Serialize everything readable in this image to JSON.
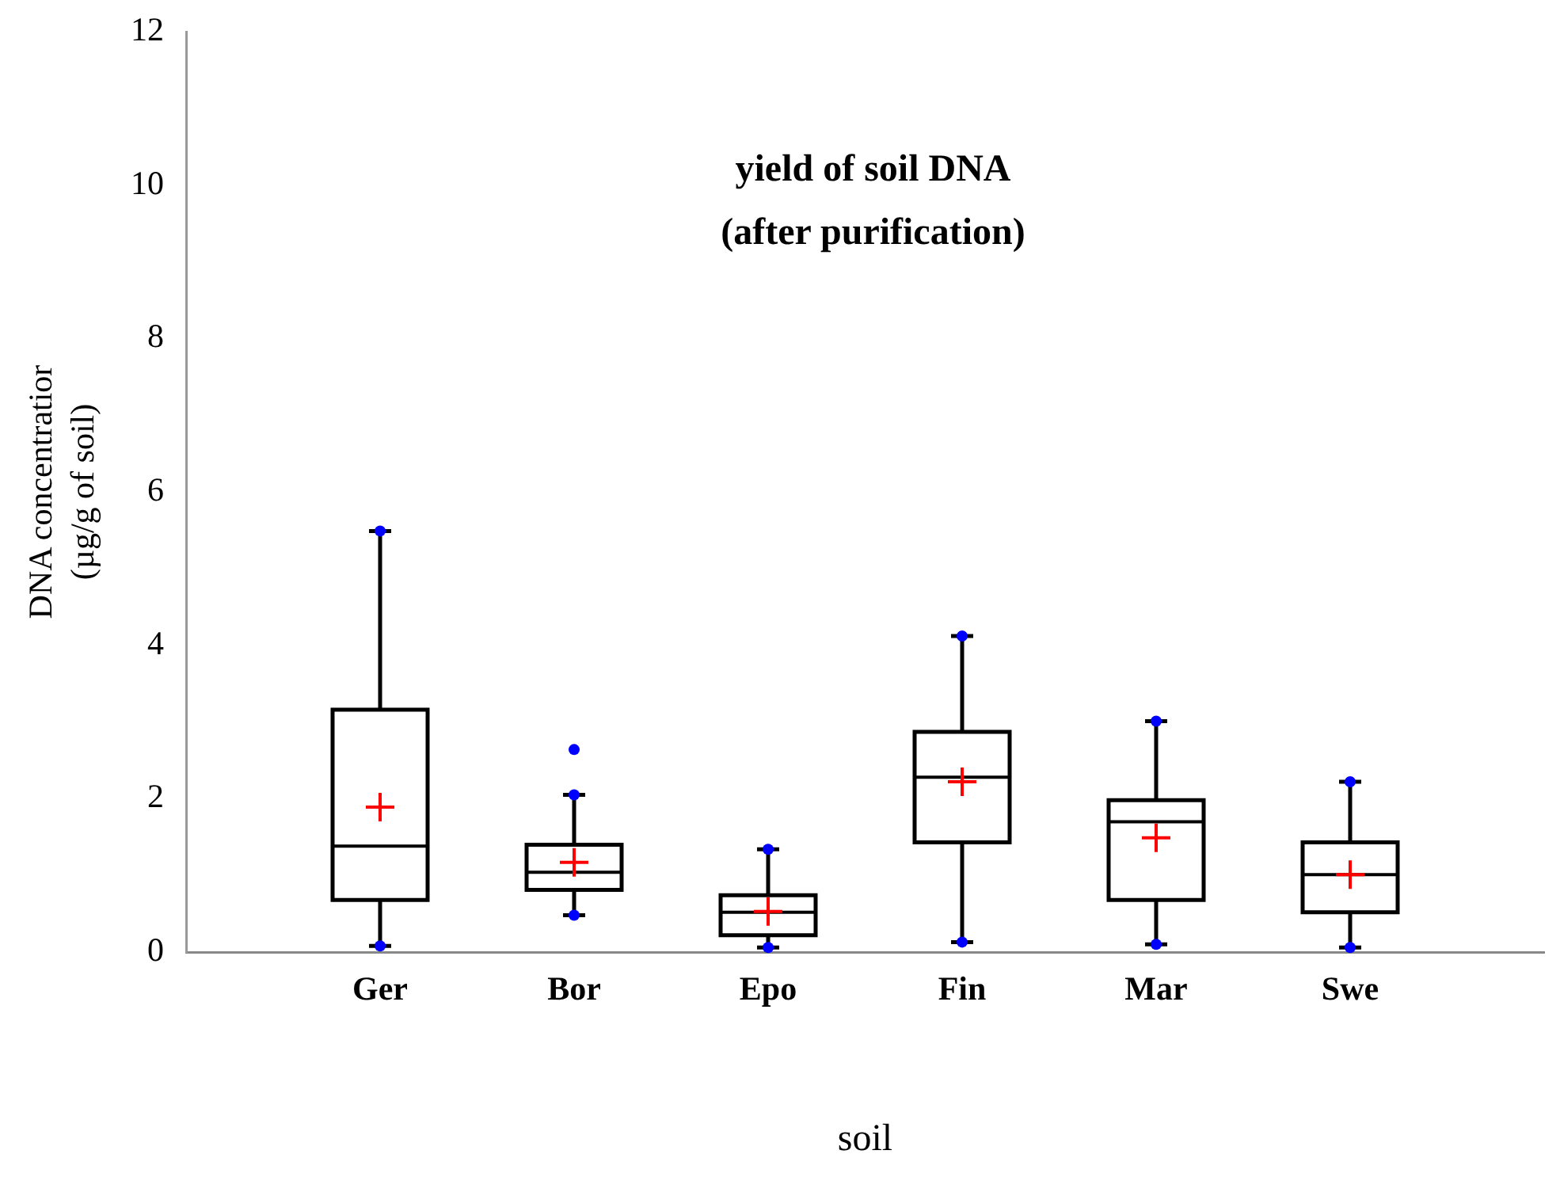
{
  "chart_data": {
    "type": "box",
    "title": "yield of soil DNA\n(after purification)",
    "xlabel": "soil",
    "ylabel": "DNA concentratior\n(µg/g of soil)",
    "categories": [
      "Ger",
      "Bor",
      "Epo",
      "Fin",
      "Mar",
      "Swe"
    ],
    "color": "#000000",
    "boxes": [
      {
        "low": 0.08,
        "q1": 0.68,
        "median": 1.38,
        "q3": 3.16,
        "high": 5.49,
        "mean": 1.89
      },
      {
        "low": 0.48,
        "q1": 0.81,
        "median": 1.04,
        "q3": 1.4,
        "high": 2.05,
        "mean": 1.17
      },
      {
        "low": 0.06,
        "q1": 0.22,
        "median": 0.52,
        "q3": 0.74,
        "high": 1.34,
        "mean": 0.53
      },
      {
        "low": 0.13,
        "q1": 1.43,
        "median": 2.28,
        "q3": 2.87,
        "high": 4.12,
        "mean": 2.22
      },
      {
        "low": 0.1,
        "q1": 0.68,
        "median": 1.7,
        "q3": 1.98,
        "high": 3.01,
        "mean": 1.49
      },
      {
        "low": 0.06,
        "q1": 0.52,
        "median": 1.01,
        "q3": 1.43,
        "high": 2.22,
        "mean": 1.01
      }
    ],
    "series": [
      {
        "type": "scatter",
        "color": "#0000ff",
        "marker": "circle",
        "x": [
          "Ger",
          "Ger",
          "Bor",
          "Bor",
          "Bor",
          "Epo",
          "Epo",
          "Fin",
          "Fin",
          "Mar",
          "Mar",
          "Swe",
          "Swe"
        ],
        "values": [
          0.08,
          5.49,
          0.48,
          2.05,
          2.64,
          0.06,
          1.34,
          0.13,
          4.12,
          0.1,
          3.01,
          0.06,
          2.22
        ]
      }
    ],
    "ylim": [
      0,
      12
    ],
    "yticks": [
      0,
      2,
      4,
      6,
      8,
      10,
      12
    ],
    "grid": false,
    "legend": false
  }
}
